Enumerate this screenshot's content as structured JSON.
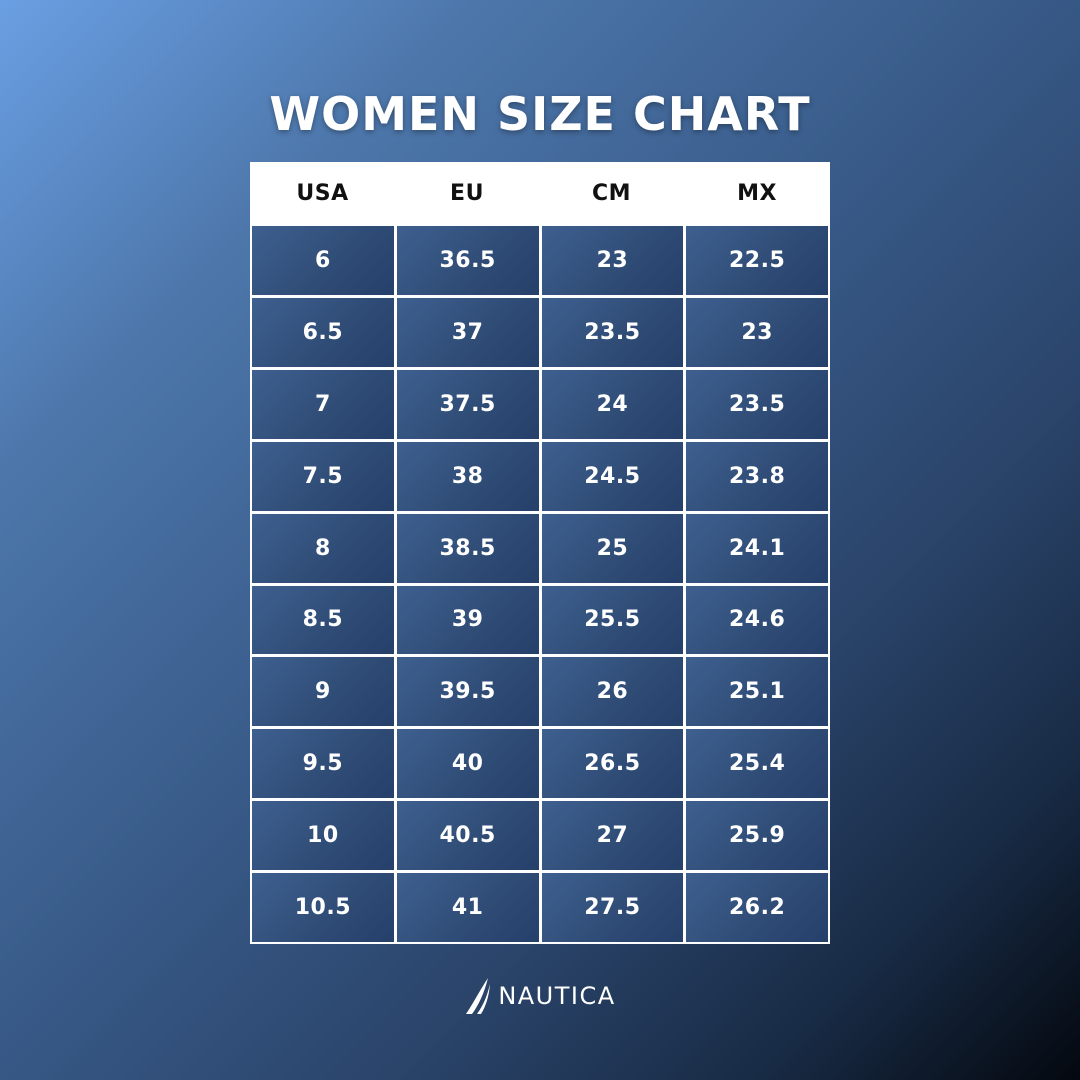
{
  "title": "WOMEN SIZE CHART",
  "table": {
    "headers": [
      "USA",
      "EU",
      "CM",
      "MX"
    ],
    "rows": [
      [
        "6",
        "36.5",
        "23",
        "22.5"
      ],
      [
        "6.5",
        "37",
        "23.5",
        "23"
      ],
      [
        "7",
        "37.5",
        "24",
        "23.5"
      ],
      [
        "7.5",
        "38",
        "24.5",
        "23.8"
      ],
      [
        "8",
        "38.5",
        "25",
        "24.1"
      ],
      [
        "8.5",
        "39",
        "25.5",
        "24.6"
      ],
      [
        "9",
        "39.5",
        "26",
        "25.1"
      ],
      [
        "9.5",
        "40",
        "26.5",
        "25.4"
      ],
      [
        "10",
        "40.5",
        "27",
        "25.9"
      ],
      [
        "10.5",
        "41",
        "27.5",
        "26.2"
      ]
    ]
  },
  "brand": {
    "name": "NAUTICA",
    "icon": "sail-icon"
  },
  "colors": {
    "gradient_start": "#6a9fe3",
    "gradient_end": "#04080f",
    "cell_fill": "#33507a",
    "grid_lines": "#ffffff",
    "header_fill": "#ffffff",
    "header_text": "#111111",
    "text": "#ffffff"
  }
}
